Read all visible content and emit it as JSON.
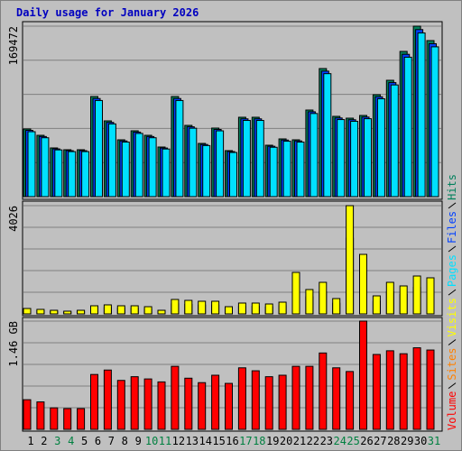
{
  "chart_data": {
    "type": "bar",
    "title": "Daily usage for January 2026",
    "title_color": "#0000c0",
    "categories": [
      "1",
      "2",
      "3",
      "4",
      "5",
      "6",
      "7",
      "8",
      "9",
      "10",
      "11",
      "12",
      "13",
      "14",
      "15",
      "16",
      "17",
      "18",
      "19",
      "20",
      "21",
      "22",
      "23",
      "24",
      "25",
      "26",
      "27",
      "28",
      "29",
      "30",
      "31"
    ],
    "category_colors": [
      "#000000",
      "#000000",
      "#008040",
      "#008040",
      "#000000",
      "#000000",
      "#000000",
      "#000000",
      "#000000",
      "#008040",
      "#008040",
      "#000000",
      "#000000",
      "#000000",
      "#000000",
      "#000000",
      "#008040",
      "#008040",
      "#000000",
      "#000000",
      "#000000",
      "#000000",
      "#000000",
      "#008040",
      "#008040",
      "#000000",
      "#000000",
      "#000000",
      "#000000",
      "#000000",
      "#008040"
    ],
    "panels": [
      {
        "ylim": [
          0,
          169472
        ],
        "yticks": [
          169472
        ],
        "series": [
          {
            "name": "Hits",
            "color": "#00805c",
            "values": [
              67250,
              60975,
              48420,
              46630,
              46630,
              99530,
              75320,
              56490,
              65460,
              60975,
              49320,
              99530,
              70840,
              52900,
              68150,
              45730,
              78910,
              78910,
              51110,
              57390,
              56490,
              86080,
              127330,
              79810,
              78010,
              80700,
              101330,
              115670,
              144370,
              169472,
              155130
            ]
          },
          {
            "name": "Files",
            "color": "#0040ff",
            "values": [
              65900,
              59750,
              47450,
              45700,
              45700,
              97540,
              73810,
              55360,
              64150,
              59750,
              48330,
              97540,
              69420,
              51840,
              66790,
              44820,
              77330,
              77330,
              50090,
              56240,
              55360,
              84360,
              124780,
              78210,
              76450,
              79090,
              99300,
              113360,
              141480,
              166080,
              152030
            ]
          },
          {
            "name": "Pages",
            "color": "#00e0ff",
            "values": [
              64560,
              58540,
              46480,
              44760,
              44760,
              95550,
              72310,
              54230,
              62840,
              58540,
              47350,
              95550,
              68010,
              50780,
              65420,
              43900,
              75750,
              75750,
              49070,
              55090,
              54230,
              82640,
              122240,
              76620,
              74890,
              77470,
              97280,
              111040,
              138600,
              162690,
              148920
            ]
          }
        ]
      },
      {
        "ylim": [
          0,
          4026
        ],
        "yticks": [
          4026
        ],
        "series": [
          {
            "name": "Sites",
            "color": "#ff8000",
            "values": [
              140,
              118,
              94,
              71,
              94,
              211,
              235,
              211,
              211,
              188,
              94,
              376,
              352,
              329,
              329,
              188,
              282,
              282,
              258,
              305,
              1080,
              634,
              822,
              399,
              2818,
              1550,
              470,
              822,
              728,
              986,
              939
            ]
          },
          {
            "name": "Visits",
            "color": "#ffff00",
            "values": [
              201,
              168,
              134,
              101,
              134,
              302,
              336,
              302,
              302,
              268,
              134,
              537,
              503,
              470,
              470,
              268,
              403,
              403,
              369,
              436,
              1543,
              906,
              1174,
              570,
              4026,
              2214,
              671,
              1174,
              1040,
              1409,
              1342
            ]
          }
        ]
      },
      {
        "ylim": [
          0,
          1.46
        ],
        "yticks": [
          {
            "value": 1.46,
            "label": "1.46 GB"
          }
        ],
        "series": [
          {
            "name": "Volume",
            "color": "#ff0000",
            "values": [
              0.4,
              0.37,
              0.29,
              0.28,
              0.28,
              0.74,
              0.8,
              0.66,
              0.71,
              0.68,
              0.64,
              0.85,
              0.69,
              0.63,
              0.73,
              0.62,
              0.83,
              0.79,
              0.71,
              0.73,
              0.85,
              0.85,
              1.03,
              0.83,
              0.78,
              1.46,
              1.01,
              1.06,
              1.02,
              1.1,
              1.07
            ]
          }
        ]
      }
    ]
  }
}
